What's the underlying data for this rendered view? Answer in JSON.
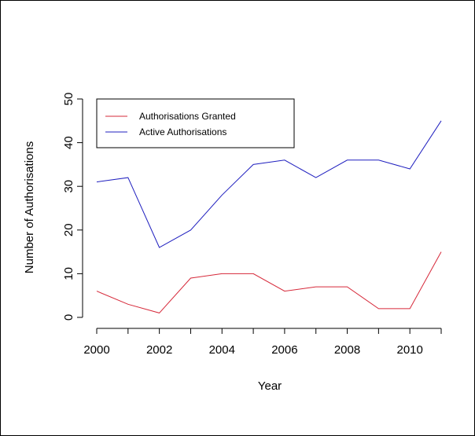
{
  "chart_data": {
    "type": "line",
    "title": "",
    "xlabel": "Year",
    "ylabel": "Number of Authorisations",
    "x": [
      2000,
      2001,
      2002,
      2003,
      2004,
      2005,
      2006,
      2007,
      2008,
      2009,
      2010,
      2011
    ],
    "xlim": [
      2000,
      2011
    ],
    "ylim": [
      0,
      50
    ],
    "x_ticks": [
      2000,
      2002,
      2004,
      2006,
      2008,
      2010
    ],
    "y_ticks": [
      0,
      10,
      20,
      30,
      40,
      50
    ],
    "grid": false,
    "legend_position": "top-left",
    "series": [
      {
        "name": "Authorisations Granted",
        "color": "#d62839",
        "values": [
          6,
          3,
          1,
          9,
          10,
          10,
          6,
          7,
          7,
          2,
          2,
          15
        ]
      },
      {
        "name": "Active Authorisations",
        "color": "#1f1fbf",
        "values": [
          31,
          32,
          16,
          20,
          28,
          35,
          36,
          32,
          36,
          36,
          34,
          45
        ]
      }
    ]
  }
}
